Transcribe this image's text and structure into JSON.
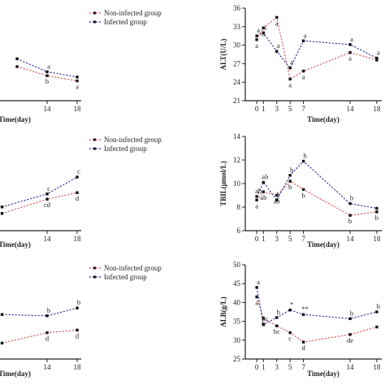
{
  "colors": {
    "non_infected": "#d9534f",
    "infected": "#2a2a9a",
    "axis": "#222222",
    "marker": "#111111"
  },
  "legend": {
    "non_infected": "Non-infected group",
    "infected": "Infected group"
  },
  "chart_data": [
    {
      "id": "left-top",
      "type": "line",
      "partial": true,
      "xlabel": "Time(day)",
      "xtick_labels": [
        "14",
        "18"
      ],
      "show_y_axis": false,
      "show_legend": true,
      "x": [
        10,
        14,
        18
      ],
      "series": [
        {
          "key": "non_infected",
          "name": "Non-infected group",
          "values": [
            2.0,
            1.3,
            0.9
          ],
          "annotations": [
            "",
            "b",
            "a"
          ]
        },
        {
          "key": "infected",
          "name": "Infected group",
          "values": [
            2.6,
            1.6,
            1.2
          ],
          "annotations": [
            "",
            "a",
            ""
          ]
        }
      ],
      "xlim": [
        9,
        18.5
      ],
      "ylim": [
        0,
        5
      ]
    },
    {
      "id": "right-top",
      "type": "line",
      "xlabel": "Time(day)",
      "ylabel": "ALT(U/L)",
      "x": [
        0,
        1,
        3,
        5,
        7,
        14,
        18
      ],
      "xtick_labels": [
        "0",
        "1",
        "3",
        "5",
        "7",
        "14",
        "18"
      ],
      "ytick_labels": [
        "21",
        "24",
        "27",
        "30",
        "33",
        "36"
      ],
      "series": [
        {
          "key": "non_infected",
          "name": "Non-infected group",
          "values": [
            30.9,
            32.8,
            34.5,
            24.5,
            25.8,
            28.8,
            27.6
          ],
          "annotations": [
            "a",
            "a",
            "a",
            "a",
            "a",
            "a",
            ""
          ]
        },
        {
          "key": "infected",
          "name": "Infected group",
          "values": [
            31.5,
            32.0,
            29.0,
            26.3,
            30.7,
            30.1,
            27.9
          ],
          "annotations": [
            "a",
            "a",
            "a",
            "a",
            "a",
            "a",
            "a"
          ]
        }
      ],
      "ylim": [
        21,
        36
      ]
    },
    {
      "id": "left-middle",
      "type": "line",
      "partial": true,
      "xlabel": "Time(day)",
      "xtick_labels": [
        "14",
        "18"
      ],
      "show_y_axis": false,
      "show_legend": true,
      "x": [
        8,
        14,
        18
      ],
      "series": [
        {
          "key": "non_infected",
          "name": "Non-infected group",
          "values": [
            0.7,
            1.8,
            2.3
          ],
          "annotations": [
            "",
            "cd",
            "d"
          ]
        },
        {
          "key": "infected",
          "name": "Infected group",
          "values": [
            1.2,
            2.2,
            3.5
          ],
          "annotations": [
            "",
            "c",
            "c"
          ]
        }
      ],
      "xlim": [
        9,
        18.5
      ],
      "ylim": [
        0,
        5
      ]
    },
    {
      "id": "right-middle",
      "type": "line",
      "xlabel": "Time(day)",
      "ylabel": "TBIL(μmol/L)",
      "x": [
        0,
        1,
        3,
        5,
        7,
        14,
        18
      ],
      "xtick_labels": [
        "0",
        "1",
        "3",
        "5",
        "7",
        "14",
        "18"
      ],
      "ytick_labels": [
        "6",
        "8",
        "10",
        "12",
        "14"
      ],
      "series": [
        {
          "key": "non_infected",
          "name": "Non-infected group",
          "values": [
            8.6,
            9.3,
            9.0,
            10.2,
            9.5,
            7.3,
            7.6
          ],
          "annotations": [
            "a",
            "ab",
            "ab",
            "b",
            "b",
            "b",
            "b"
          ]
        },
        {
          "key": "infected",
          "name": "Infected group",
          "values": [
            8.9,
            10.1,
            8.6,
            10.7,
            11.9,
            8.3,
            7.9
          ],
          "annotations": [
            "ab",
            "ab",
            "b",
            "b",
            "b",
            "b",
            ""
          ]
        }
      ],
      "ylim": [
        6,
        14
      ]
    },
    {
      "id": "left-bottom",
      "type": "line",
      "partial": true,
      "xlabel": "Time(day)",
      "xtick_labels": [
        "14",
        "18"
      ],
      "show_y_axis": false,
      "show_legend": true,
      "x": [
        8,
        14,
        18
      ],
      "series": [
        {
          "key": "non_infected",
          "name": "Non-infected group",
          "values": [
            0.6,
            1.4,
            1.6
          ],
          "annotations": [
            "",
            "d",
            "d"
          ]
        },
        {
          "key": "infected",
          "name": "Infected group",
          "values": [
            2.8,
            2.7,
            3.3
          ],
          "annotations": [
            "",
            "b",
            "b"
          ]
        }
      ],
      "xlim": [
        9,
        18.5
      ],
      "ylim": [
        0,
        5
      ]
    },
    {
      "id": "right-bottom",
      "type": "line",
      "xlabel": "Time(day)",
      "ylabel": "ALB(g/L)",
      "x": [
        0,
        1,
        3,
        5,
        7,
        14,
        18
      ],
      "xtick_labels": [
        "0",
        "1",
        "3",
        "5",
        "7",
        "14",
        "18"
      ],
      "ytick_labels": [
        "25",
        "30",
        "35",
        "40",
        "45",
        "50"
      ],
      "series": [
        {
          "key": "non_infected",
          "name": "Non-infected group",
          "values": [
            41.5,
            35.8,
            33.8,
            32.0,
            29.5,
            31.5,
            33.5
          ],
          "annotations": [
            "a",
            "b",
            "bc",
            "c",
            "d",
            "de",
            ""
          ]
        },
        {
          "key": "infected",
          "name": "Infected group",
          "values": [
            44.0,
            34.2,
            36.0,
            38.0,
            36.8,
            35.7,
            37.5
          ],
          "annotations": [
            "a",
            "bc",
            "b",
            "*",
            "**",
            "b",
            "b"
          ]
        }
      ],
      "ylim": [
        25,
        50
      ]
    }
  ]
}
